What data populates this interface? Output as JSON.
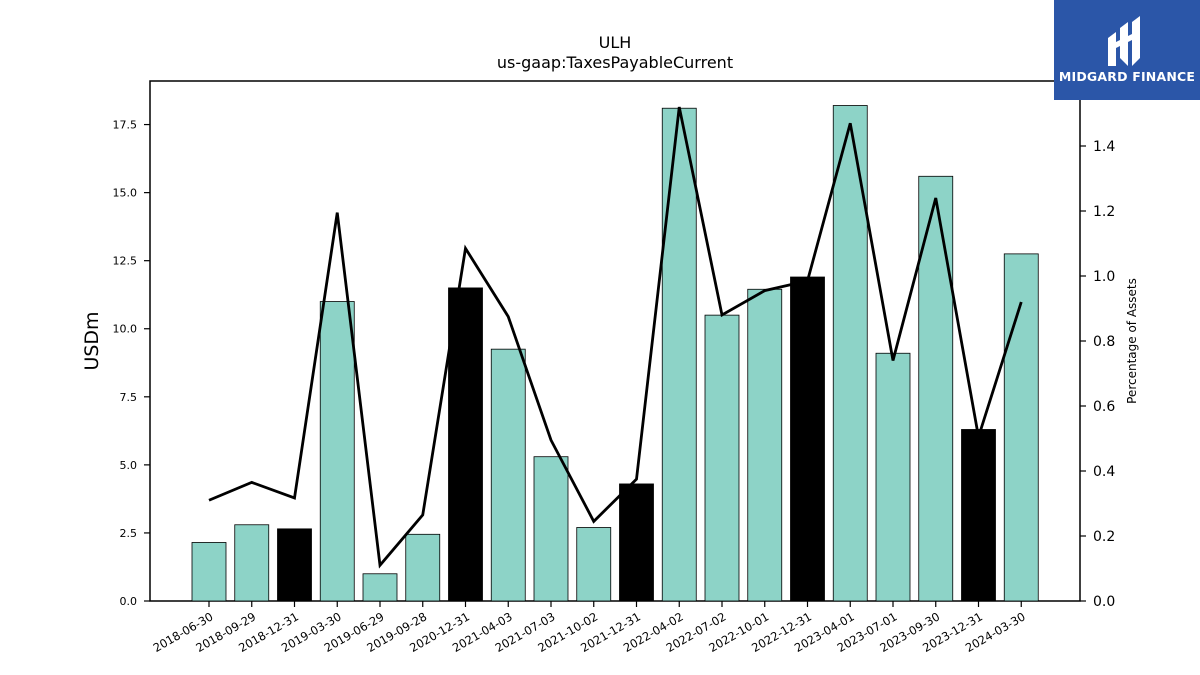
{
  "chart_data": {
    "type": "bar",
    "title": "ULH",
    "subtitle": "us-gaap:TaxesPayableCurrent",
    "ylabel": "USDm",
    "y2label": "Percentage of Assets",
    "ylim": [
      0,
      19.1
    ],
    "y2lim": [
      0,
      1.6
    ],
    "yticks": [
      "0.0",
      "2.5",
      "5.0",
      "7.5",
      "10.0",
      "12.5",
      "15.0",
      "17.5"
    ],
    "y2ticks": [
      "0.0",
      "0.2",
      "0.4",
      "0.6",
      "0.8",
      "1.0",
      "1.2",
      "1.4"
    ],
    "categories": [
      "2018-06-30",
      "2018-09-29",
      "2018-12-31",
      "2019-03-30",
      "2019-06-29",
      "2019-09-28",
      "2020-12-31",
      "2021-04-03",
      "2021-07-03",
      "2021-10-02",
      "2021-12-31",
      "2022-04-02",
      "2022-07-02",
      "2022-10-01",
      "2022-12-31",
      "2023-04-01",
      "2023-07-01",
      "2023-09-30",
      "2023-12-31",
      "2024-03-30"
    ],
    "series": [
      {
        "type": "bar",
        "values": [
          2.15,
          2.8,
          2.65,
          11.0,
          1.0,
          2.45,
          11.5,
          9.25,
          5.3,
          2.7,
          4.3,
          18.1,
          10.5,
          11.45,
          11.9,
          18.2,
          9.1,
          15.6,
          6.3,
          12.75
        ],
        "colors": [
          "#8dd3c7",
          "#8dd3c7",
          "#000000",
          "#8dd3c7",
          "#8dd3c7",
          "#8dd3c7",
          "#000000",
          "#8dd3c7",
          "#8dd3c7",
          "#8dd3c7",
          "#000000",
          "#8dd3c7",
          "#8dd3c7",
          "#8dd3c7",
          "#000000",
          "#8dd3c7",
          "#8dd3c7",
          "#8dd3c7",
          "#000000",
          "#8dd3c7"
        ]
      },
      {
        "type": "line",
        "axis": "right",
        "values": [
          0.31,
          0.365,
          0.317,
          1.195,
          0.11,
          0.265,
          1.085,
          0.875,
          0.495,
          0.245,
          0.375,
          1.52,
          0.88,
          0.955,
          0.985,
          1.47,
          0.74,
          1.24,
          0.505,
          0.92
        ],
        "color": "#000000"
      }
    ],
    "grid": false
  },
  "logo": {
    "text": "MIDGARD FINANCE",
    "background": "#2b56a8"
  }
}
